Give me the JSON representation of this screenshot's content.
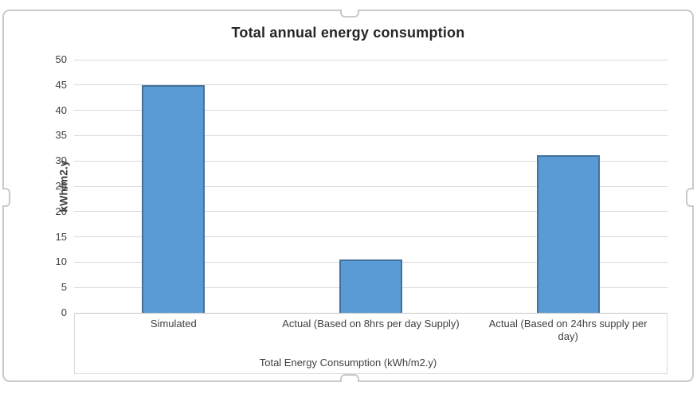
{
  "chart_data": {
    "type": "bar",
    "title": "Total annual energy consumption",
    "categories": [
      "Simulated",
      "Actual (Based on 8hrs per day Supply)",
      "Actual (Based on 24hrs supply per day)"
    ],
    "category_display": [
      "Simulated",
      "Actual (Based on 8hrs per day Supply)",
      "Actual (Based on 24hrs supply per\nday)"
    ],
    "values": [
      45,
      10.5,
      31.2
    ],
    "xlabel": "Total Energy Consumption (kWh/m2.y)",
    "ylabel": "kWh/m2.y",
    "ylim": [
      0,
      50
    ],
    "ytick_interval": 5,
    "yticks": [
      0,
      5,
      10,
      15,
      20,
      25,
      30,
      35,
      40,
      45,
      50
    ],
    "grid": true,
    "legend_position": "none",
    "bar_fill_color": "#5B9BD5",
    "bar_border_color": "#41719C",
    "gridline_color": "#D9D9D9",
    "axis_line_color": "#C6C6C6",
    "text_color": "#404040",
    "title_color": "#262626",
    "frame_border_color": "#C9C9C9"
  }
}
